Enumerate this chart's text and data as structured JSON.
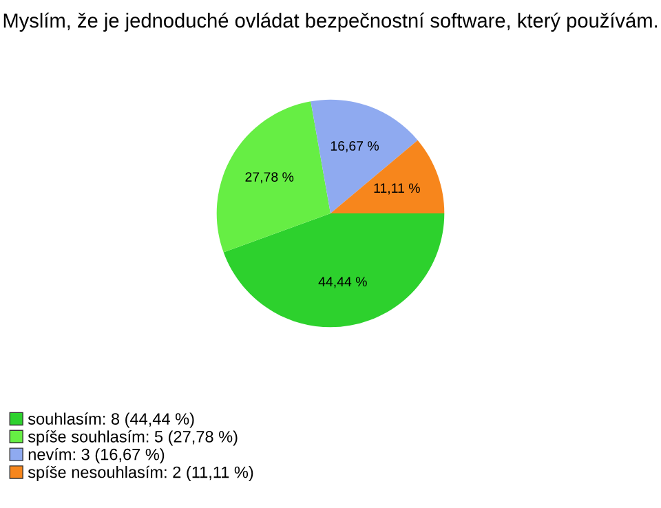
{
  "chart_data": {
    "type": "pie",
    "title": "Myslím, že je jednoduché ovládat bezpečnostní software, který používám.",
    "categories": [
      "souhlasím: 8 (44,44 %)",
      "spíše souhlasím: 5 (27,78 %)",
      "nevím: 3 (16,67 %)",
      "spíše nesouhlasím: 2 (11,11 %)"
    ],
    "values": [
      44.44,
      27.78,
      16.67,
      11.11
    ],
    "value_labels": [
      "44,44 %",
      "27,78 %",
      "16,67 %",
      "11,11 %"
    ],
    "colors": [
      "#2dd12d",
      "#66ee44",
      "#8faaf0",
      "#f7861c"
    ],
    "legend": "bottom left"
  }
}
